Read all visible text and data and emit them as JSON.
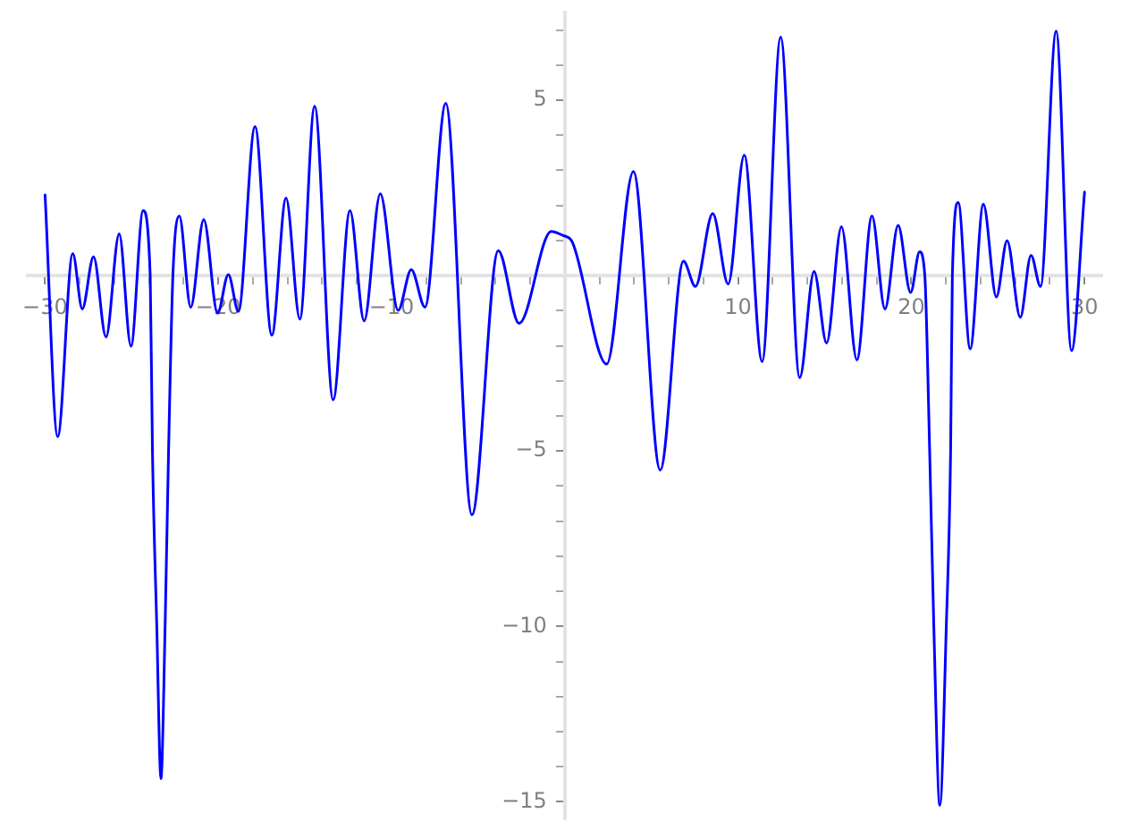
{
  "chart_data": {
    "type": "line",
    "x": [
      -30.0,
      -29.27,
      -28.4,
      -27.85,
      -27.2,
      -26.48,
      -25.72,
      -25.04,
      -24.34,
      -23.93,
      -23.8,
      -23.55,
      -23.31,
      -23.07,
      -22.87,
      -22.62,
      -22.25,
      -21.59,
      -20.84,
      -20.04,
      -19.42,
      -18.84,
      -17.88,
      -16.91,
      -16.09,
      -15.29,
      -14.44,
      -13.37,
      -12.4,
      -11.58,
      -10.65,
      -9.62,
      -8.86,
      -8.07,
      -6.87,
      -5.36,
      -3.84,
      -2.64,
      -0.78,
      -0.09,
      0.42,
      2.42,
      3.96,
      5.51,
      6.85,
      7.54,
      8.54,
      9.43,
      10.36,
      11.39,
      12.46,
      13.56,
      14.39,
      15.11,
      15.97,
      16.86,
      17.73,
      18.48,
      19.24,
      19.96,
      20.48,
      20.78,
      21.06,
      21.3,
      21.65,
      22.02,
      22.27,
      22.37,
      22.71,
      23.4,
      24.16,
      24.91,
      25.53,
      26.29,
      26.91,
      27.46,
      28.36,
      29.25,
      30.0
    ],
    "series": [
      {
        "color": "#0000ff",
        "values": [
          2.3,
          -4.59,
          0.63,
          -0.95,
          0.54,
          -1.75,
          1.19,
          -2.01,
          1.85,
          0,
          -5,
          -10,
          -14.34,
          -10,
          -5,
          0,
          1.7,
          -0.9,
          1.6,
          -1.07,
          0.03,
          -1.02,
          4.25,
          -1.7,
          2.21,
          -1.24,
          4.83,
          -3.54,
          1.85,
          -1.29,
          2.33,
          -0.99,
          0.17,
          -0.9,
          4.91,
          -6.82,
          0.71,
          -1.36,
          1.26,
          1.14,
          0.97,
          -2.52,
          2.97,
          -5.54,
          0.41,
          -0.31,
          1.77,
          -0.24,
          3.43,
          -2.45,
          6.8,
          -2.91,
          0.12,
          -1.92,
          1.39,
          -2.4,
          1.7,
          -0.95,
          1.43,
          -0.48,
          0.68,
          0,
          -5,
          -10,
          -15.1,
          -10,
          -5,
          0,
          2.08,
          -2.09,
          2.04,
          -0.61,
          1.0,
          -1.19,
          0.58,
          -0.31,
          6.97,
          -2.14,
          2.38
        ]
      }
    ],
    "xlim": [
      -31,
      31
    ],
    "ylim": [
      -15.5,
      7.5
    ],
    "xticks": [
      {
        "value": -30,
        "label": "−30"
      },
      {
        "value": -28,
        "label": null
      },
      {
        "value": -26,
        "label": null
      },
      {
        "value": -24,
        "label": null
      },
      {
        "value": -22,
        "label": null
      },
      {
        "value": -20,
        "label": "−20"
      },
      {
        "value": -18,
        "label": null
      },
      {
        "value": -16,
        "label": null
      },
      {
        "value": -14,
        "label": null
      },
      {
        "value": -12,
        "label": null
      },
      {
        "value": -10,
        "label": "−10"
      },
      {
        "value": -8,
        "label": null
      },
      {
        "value": -6,
        "label": null
      },
      {
        "value": -4,
        "label": null
      },
      {
        "value": -2,
        "label": null
      },
      {
        "value": 2,
        "label": null
      },
      {
        "value": 4,
        "label": null
      },
      {
        "value": 6,
        "label": null
      },
      {
        "value": 8,
        "label": null
      },
      10,
      {
        "value": 12,
        "label": null
      },
      {
        "value": 14,
        "label": null
      },
      {
        "value": 16,
        "label": null
      },
      {
        "value": 18,
        "label": null
      },
      20,
      {
        "value": 22,
        "label": null
      },
      {
        "value": 24,
        "label": null
      },
      {
        "value": 26,
        "label": null
      },
      {
        "value": 28,
        "label": null
      },
      30
    ],
    "yticks": [
      {
        "value": -15,
        "label": "−15"
      },
      {
        "value": -14,
        "label": null
      },
      {
        "value": -13,
        "label": null
      },
      {
        "value": -12,
        "label": null
      },
      {
        "value": -11,
        "label": null
      },
      {
        "value": -10,
        "label": "−10"
      },
      {
        "value": -9,
        "label": null
      },
      {
        "value": -8,
        "label": null
      },
      {
        "value": -7,
        "label": null
      },
      {
        "value": -6,
        "label": null
      },
      {
        "value": -5,
        "label": "−5"
      },
      {
        "value": -4,
        "label": null
      },
      {
        "value": -3,
        "label": null
      },
      {
        "value": -2,
        "label": null
      },
      {
        "value": -1,
        "label": null
      },
      {
        "value": 1,
        "label": null
      },
      {
        "value": 2,
        "label": null
      },
      {
        "value": 3,
        "label": null
      },
      {
        "value": 4,
        "label": null
      },
      5,
      {
        "value": 6,
        "label": null
      },
      {
        "value": 7,
        "label": null
      }
    ]
  }
}
